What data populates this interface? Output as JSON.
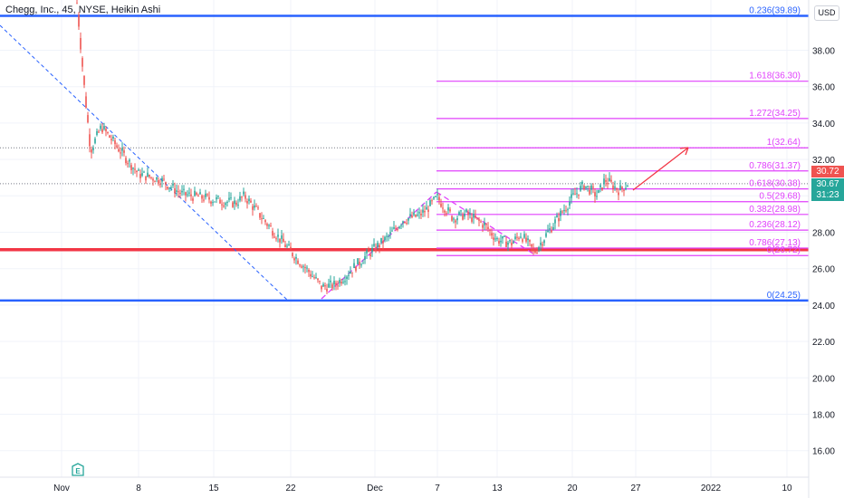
{
  "header": {
    "symbol_line": "Chegg, Inc., 45, NYSE, Heikin Ashi",
    "currency_button": "USD"
  },
  "price_axis": {
    "ticks": [
      "38.00",
      "36.00",
      "34.00",
      "32.00",
      "30.00",
      "28.00",
      "26.00",
      "24.00",
      "22.00",
      "20.00",
      "18.00",
      "16.00"
    ],
    "last_price_tag": "30.72",
    "current_price_tag": "30.67",
    "countdown_tag": "31:23"
  },
  "time_axis": {
    "ticks": [
      "Nov",
      "8",
      "15",
      "22",
      "Dec",
      "7",
      "13",
      "20",
      "27",
      "2022",
      "10"
    ]
  },
  "earnings_badge": "E",
  "colors": {
    "up": "#26a69a",
    "down": "#ef5350",
    "fib_ext": "#e040fb",
    "fib_retr": "#2962ff",
    "support": "#f23645"
  },
  "chart_data": {
    "type": "candlestick",
    "title": "Chegg, Inc., 45, NYSE, Heikin Ashi",
    "ylim": [
      14.8,
      40.6
    ],
    "x_ticks": [
      "Nov",
      "8",
      "15",
      "22",
      "Dec",
      "7",
      "13",
      "20",
      "27",
      "2022",
      "10"
    ],
    "y_ticks": [
      38,
      36,
      34,
      32,
      30,
      28,
      26,
      24,
      22,
      20,
      18,
      16
    ],
    "price_path": [
      {
        "d": "Nov 2",
        "p": 40.6
      },
      {
        "d": "Nov 3",
        "p": 36.0
      },
      {
        "d": "Nov 4",
        "p": 32.5
      },
      {
        "d": "Nov 5",
        "p": 33.8
      },
      {
        "d": "Nov 8",
        "p": 31.2
      },
      {
        "d": "Nov 10",
        "p": 30.9
      },
      {
        "d": "Nov 12",
        "p": 30.1
      },
      {
        "d": "Nov 15",
        "p": 29.8
      },
      {
        "d": "Nov 17",
        "p": 29.6
      },
      {
        "d": "Nov 18",
        "p": 30.0
      },
      {
        "d": "Nov 19",
        "p": 28.7
      },
      {
        "d": "Nov 22",
        "p": 27.0
      },
      {
        "d": "Nov 23",
        "p": 25.9
      },
      {
        "d": "Nov 24",
        "p": 25.0
      },
      {
        "d": "Nov 26",
        "p": 25.1
      },
      {
        "d": "Nov 29",
        "p": 26.6
      },
      {
        "d": "Dec 1",
        "p": 27.8
      },
      {
        "d": "Dec 2",
        "p": 28.7
      },
      {
        "d": "Dec 3",
        "p": 28.9
      },
      {
        "d": "Dec 6",
        "p": 29.2
      },
      {
        "d": "Dec 7",
        "p": 29.9
      },
      {
        "d": "Dec 8",
        "p": 28.8
      },
      {
        "d": "Dec 9",
        "p": 29.0
      },
      {
        "d": "Dec 10",
        "p": 28.4
      },
      {
        "d": "Dec 13",
        "p": 27.6
      },
      {
        "d": "Dec 14",
        "p": 27.4
      },
      {
        "d": "Dec 15",
        "p": 27.9
      },
      {
        "d": "Dec 16",
        "p": 26.9
      },
      {
        "d": "Dec 17",
        "p": 28.0
      },
      {
        "d": "Dec 20",
        "p": 29.9
      },
      {
        "d": "Dec 21",
        "p": 30.6
      },
      {
        "d": "Dec 22",
        "p": 30.0
      },
      {
        "d": "Dec 23",
        "p": 30.9
      },
      {
        "d": "Dec 24",
        "p": 30.3
      },
      {
        "d": "Dec 27",
        "p": 30.67
      }
    ],
    "horizontal_levels": [
      {
        "label": "0.236(39.89)",
        "value": 39.89,
        "color": "#2962ff"
      },
      {
        "label": "",
        "value": 27.04,
        "color": "#f23645"
      },
      {
        "label": "0(24.25)",
        "value": 24.25,
        "color": "#2962ff"
      }
    ],
    "fib_extension_levels": [
      {
        "label": "1.618(36.30)",
        "value": 36.3
      },
      {
        "label": "1.272(34.25)",
        "value": 34.25
      },
      {
        "label": "1(32.64)",
        "value": 32.64
      },
      {
        "label": "0.786(31.37)",
        "value": 31.37
      },
      {
        "label": "0.618(30.38)",
        "value": 30.38
      },
      {
        "label": "0.5(29.68)",
        "value": 29.68
      },
      {
        "label": "0.382(28.98)",
        "value": 28.98
      },
      {
        "label": "0.236(28.12)",
        "value": 28.12
      },
      {
        "label": "0.786(27.13)",
        "value": 27.13
      },
      {
        "label": "0(26.72)",
        "value": 26.72
      }
    ],
    "dotted_levels": [
      32.64,
      30.67
    ]
  }
}
